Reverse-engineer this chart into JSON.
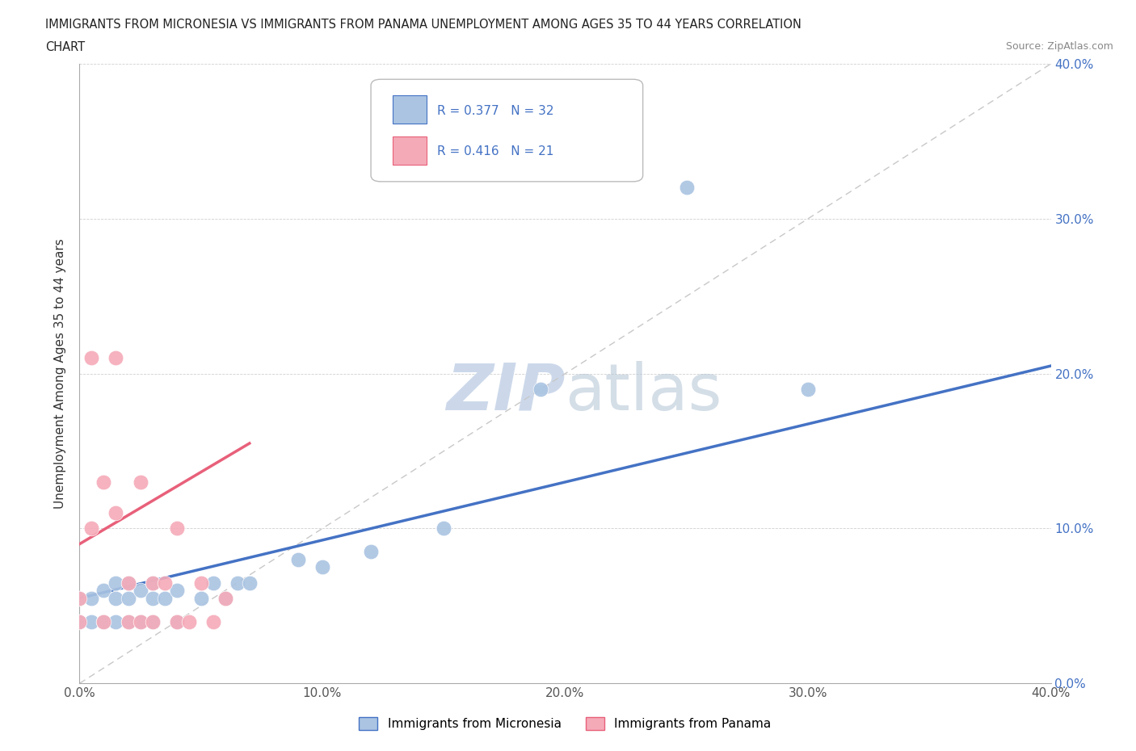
{
  "title_line1": "IMMIGRANTS FROM MICRONESIA VS IMMIGRANTS FROM PANAMA UNEMPLOYMENT AMONG AGES 35 TO 44 YEARS CORRELATION",
  "title_line2": "CHART",
  "source": "Source: ZipAtlas.com",
  "ylabel": "Unemployment Among Ages 35 to 44 years",
  "xlim": [
    0.0,
    0.4
  ],
  "ylim": [
    0.0,
    0.4
  ],
  "xticks": [
    0.0,
    0.1,
    0.2,
    0.3,
    0.4
  ],
  "yticks": [
    0.0,
    0.1,
    0.2,
    0.3,
    0.4
  ],
  "xticklabels": [
    "0.0%",
    "10.0%",
    "20.0%",
    "30.0%",
    "40.0%"
  ],
  "yticklabels_right": [
    "0.0%",
    "10.0%",
    "20.0%",
    "30.0%",
    "40.0%"
  ],
  "legend_micronesia_label": "Immigrants from Micronesia",
  "legend_panama_label": "Immigrants from Panama",
  "R_micronesia": 0.377,
  "N_micronesia": 32,
  "R_panama": 0.416,
  "N_panama": 21,
  "color_micronesia": "#aac4e2",
  "color_panama": "#f5aab8",
  "line_color_micronesia": "#4472c4",
  "line_color_panama": "#e8607a",
  "trendline_gray": "#c8c8c8",
  "watermark_color": "#ccd8ea",
  "tick_color": "#4472c4",
  "background_color": "#ffffff",
  "micronesia_x": [
    0.0,
    0.0,
    0.005,
    0.005,
    0.01,
    0.01,
    0.015,
    0.015,
    0.015,
    0.02,
    0.02,
    0.02,
    0.025,
    0.025,
    0.03,
    0.03,
    0.03,
    0.035,
    0.04,
    0.04,
    0.05,
    0.055,
    0.06,
    0.065,
    0.07,
    0.09,
    0.1,
    0.12,
    0.15,
    0.19,
    0.3,
    0.25
  ],
  "micronesia_y": [
    0.04,
    0.055,
    0.04,
    0.055,
    0.04,
    0.06,
    0.04,
    0.055,
    0.065,
    0.04,
    0.055,
    0.065,
    0.04,
    0.06,
    0.04,
    0.055,
    0.065,
    0.055,
    0.04,
    0.06,
    0.055,
    0.065,
    0.055,
    0.065,
    0.065,
    0.08,
    0.075,
    0.085,
    0.1,
    0.19,
    0.19,
    0.32
  ],
  "panama_x": [
    0.0,
    0.0,
    0.005,
    0.005,
    0.01,
    0.01,
    0.015,
    0.015,
    0.02,
    0.02,
    0.025,
    0.025,
    0.03,
    0.03,
    0.035,
    0.04,
    0.04,
    0.045,
    0.05,
    0.055,
    0.06
  ],
  "panama_y": [
    0.04,
    0.055,
    0.1,
    0.21,
    0.04,
    0.13,
    0.11,
    0.21,
    0.04,
    0.065,
    0.04,
    0.13,
    0.04,
    0.065,
    0.065,
    0.04,
    0.1,
    0.04,
    0.065,
    0.04,
    0.055
  ],
  "mic_trend_x0": 0.0,
  "mic_trend_y0": 0.055,
  "mic_trend_x1": 0.4,
  "mic_trend_y1": 0.205,
  "pan_trend_x0": 0.0,
  "pan_trend_y0": 0.09,
  "pan_trend_x1": 0.07,
  "pan_trend_y1": 0.155
}
